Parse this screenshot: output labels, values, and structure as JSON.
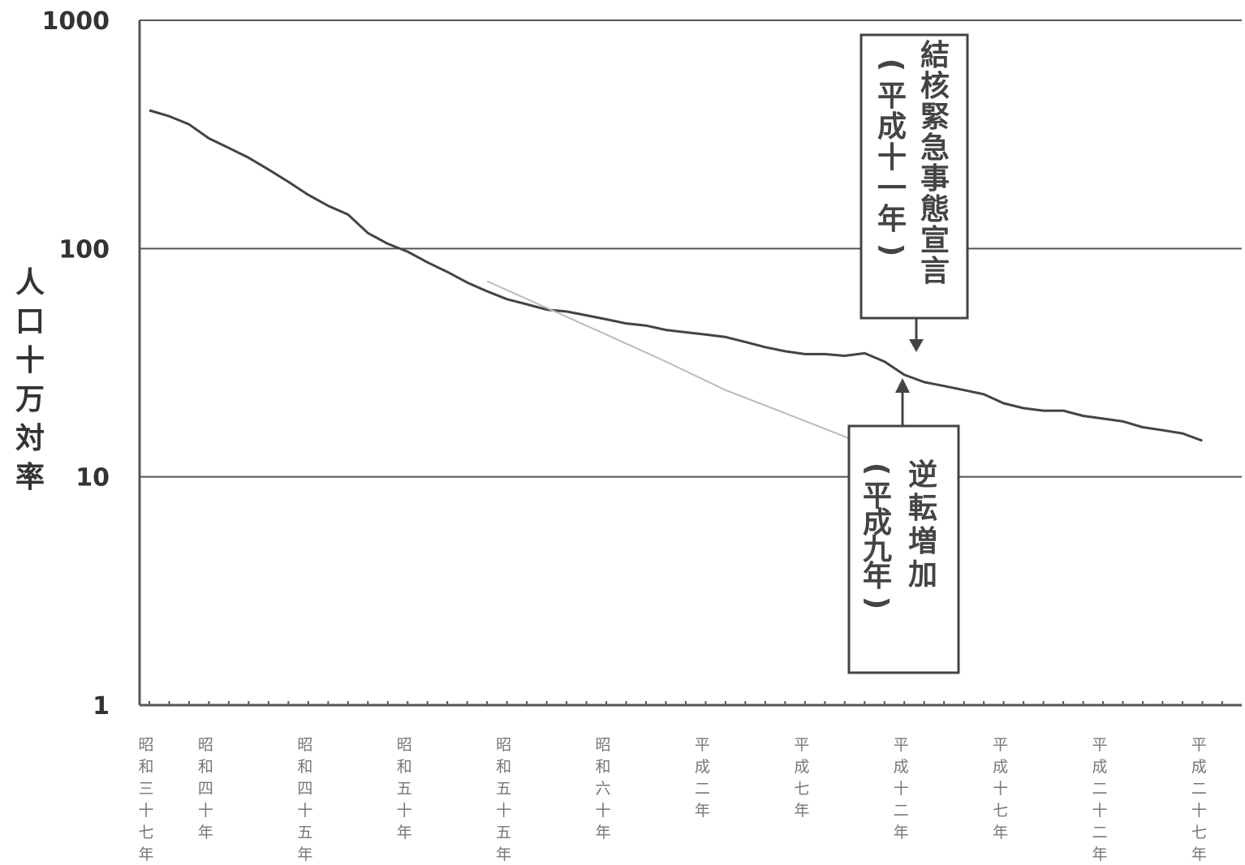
{
  "chart_data": {
    "type": "line",
    "title": "",
    "xlabel": "",
    "ylabel": "人口十万対率",
    "yscale": "log",
    "ylim": [
      1,
      1000
    ],
    "y_ticks": [
      "1",
      "10",
      "100",
      "1000"
    ],
    "grid": "horizontal",
    "x_range": [
      1962,
      2016
    ],
    "x_ticks": [
      {
        "year": 1962,
        "label": "昭和三十七年"
      },
      {
        "year": 1965,
        "label": "昭和四十年"
      },
      {
        "year": 1970,
        "label": "昭和四十五年"
      },
      {
        "year": 1975,
        "label": "昭和五十年"
      },
      {
        "year": 1980,
        "label": "昭和五十五年"
      },
      {
        "year": 1985,
        "label": "昭和六十年"
      },
      {
        "year": 1990,
        "label": "平成二年"
      },
      {
        "year": 1995,
        "label": "平成七年"
      },
      {
        "year": 2000,
        "label": "平成十二年"
      },
      {
        "year": 2005,
        "label": "平成十七年"
      },
      {
        "year": 2010,
        "label": "平成二十二年"
      },
      {
        "year": 2015,
        "label": "平成二十七年"
      }
    ],
    "series": [
      {
        "color": "#444444",
        "points": [
          [
            1962,
            403
          ],
          [
            1963,
            380
          ],
          [
            1964,
            350
          ],
          [
            1965,
            304
          ],
          [
            1966,
            276
          ],
          [
            1967,
            250
          ],
          [
            1968,
            222
          ],
          [
            1969,
            196
          ],
          [
            1970,
            172
          ],
          [
            1971,
            154
          ],
          [
            1972,
            141
          ],
          [
            1973,
            117
          ],
          [
            1974,
            105
          ],
          [
            1975,
            97
          ],
          [
            1976,
            87
          ],
          [
            1977,
            79
          ],
          [
            1978,
            71
          ],
          [
            1979,
            65
          ],
          [
            1980,
            60
          ],
          [
            1981,
            57
          ],
          [
            1982,
            54
          ],
          [
            1983,
            53
          ],
          [
            1984,
            51
          ],
          [
            1985,
            49
          ],
          [
            1986,
            47
          ],
          [
            1987,
            46
          ],
          [
            1988,
            44
          ],
          [
            1989,
            43
          ],
          [
            1990,
            42
          ],
          [
            1991,
            41
          ],
          [
            1992,
            39
          ],
          [
            1993,
            37
          ],
          [
            1994,
            35.5
          ],
          [
            1995,
            34.5
          ],
          [
            1996,
            34.5
          ],
          [
            1997,
            33.9
          ],
          [
            1998,
            34.8
          ],
          [
            1999,
            32
          ],
          [
            2000,
            28
          ],
          [
            2001,
            26
          ],
          [
            2002,
            25
          ],
          [
            2003,
            24
          ],
          [
            2004,
            23
          ],
          [
            2005,
            21
          ],
          [
            2006,
            20
          ],
          [
            2007,
            19.5
          ],
          [
            2008,
            19.5
          ],
          [
            2009,
            18.5
          ],
          [
            2010,
            18
          ],
          [
            2011,
            17.5
          ],
          [
            2012,
            16.5
          ],
          [
            2013,
            16
          ],
          [
            2014,
            15.5
          ],
          [
            2015,
            14.4
          ]
        ]
      },
      {
        "color": "#bbbbbb",
        "points": [
          [
            1979,
            72
          ],
          [
            1982,
            55
          ],
          [
            1985,
            42
          ],
          [
            1988,
            32
          ],
          [
            1991,
            24
          ],
          [
            1994,
            19
          ],
          [
            1997,
            15
          ],
          [
            1999,
            12.5
          ],
          [
            2001,
            10.3
          ]
        ]
      }
    ],
    "annotations": [
      {
        "text": "結核緊急事態宣言",
        "subtext": "（平成十一年）",
        "target_year": 1999,
        "position": "above"
      },
      {
        "text": "逆転増加",
        "subtext": "（平成九年）",
        "target_year": 1997,
        "position": "below"
      }
    ]
  }
}
